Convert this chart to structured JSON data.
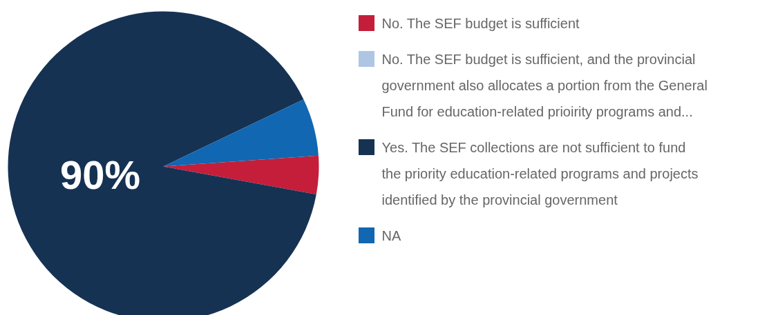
{
  "chart_data": {
    "type": "pie",
    "categories": [
      "No. The SEF budget is sufficient",
      "No. The SEF budget is sufficient, and the provincial government also allocates a portion from the General Fund for education-related prioirity programs and...",
      "Yes. The SEF collections are not sufficient to fund the priority education-related programs and projects identified by the provincial government",
      "NA"
    ],
    "values": [
      4,
      0,
      90,
      6
    ],
    "colors": [
      "#c41e3a",
      "#aec6e4",
      "#163253",
      "#1167b1"
    ],
    "value_labels": [
      null,
      null,
      "90%",
      null
    ],
    "legend": "right"
  }
}
